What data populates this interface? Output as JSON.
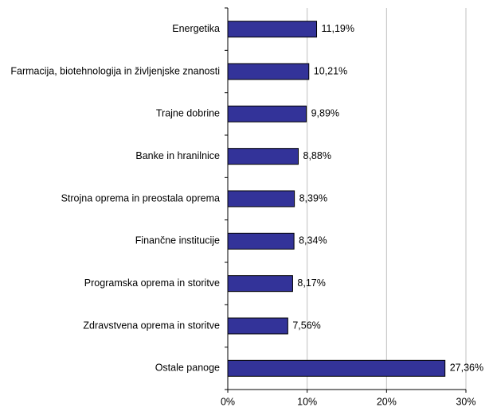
{
  "chart_data": {
    "type": "bar",
    "orientation": "horizontal",
    "categories": [
      "Energetika",
      "Farmacija, biotehnologija in življenjske znanosti",
      "Trajne dobrine",
      "Banke in hranilnice",
      "Strojna oprema in preostala oprema",
      "Finančne institucije",
      "Programska oprema in storitve",
      "Zdravstvena oprema in storitve",
      "Ostale panoge"
    ],
    "values": [
      11.19,
      10.21,
      9.89,
      8.88,
      8.39,
      8.34,
      8.17,
      7.56,
      27.36
    ],
    "value_labels": [
      "11,19%",
      "10,21%",
      "9,89%",
      "8,88%",
      "8,39%",
      "8,34%",
      "8,17%",
      "7,56%",
      "27,36%"
    ],
    "color": "#333399",
    "xlim": [
      0,
      30
    ],
    "xticks": [
      {
        "value": 0,
        "label": "0%"
      },
      {
        "value": 10,
        "label": "10%"
      },
      {
        "value": 20,
        "label": "20%"
      },
      {
        "value": 30,
        "label": "30%"
      }
    ],
    "grid": true
  }
}
